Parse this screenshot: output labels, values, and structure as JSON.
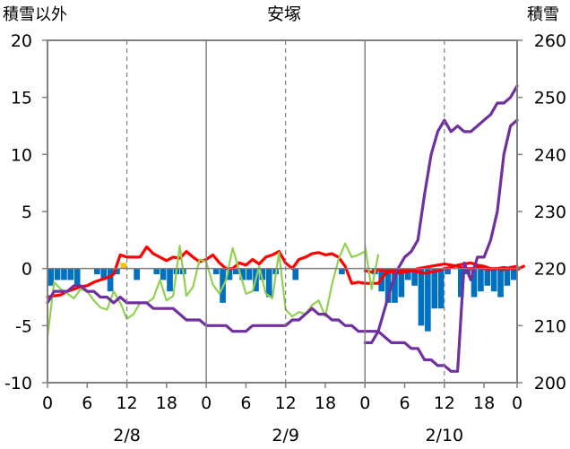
{
  "chart_data": {
    "type": "bar+line",
    "title": "安塚",
    "ylabel_left": "積雪以外",
    "ylabel_right": "積雪",
    "ylim_left": [
      -10,
      20
    ],
    "ylim_right": [
      200,
      260
    ],
    "yticks_left": [
      -10,
      -5,
      0,
      5,
      10,
      15,
      20
    ],
    "yticks_right": [
      200,
      210,
      220,
      230,
      240,
      250,
      260
    ],
    "xlim": [
      0,
      71
    ],
    "xticks": [
      0,
      6,
      12,
      18,
      24,
      30,
      36,
      42,
      48,
      54,
      60,
      66,
      72
    ],
    "xtick_labels": [
      "0",
      "6",
      "12",
      "18",
      "0",
      "6",
      "12",
      "18",
      "0",
      "6",
      "12",
      "18",
      "0"
    ],
    "date_labels": [
      {
        "hour": 12,
        "label": "2/8"
      },
      {
        "hour": 36,
        "label": "2/9"
      },
      {
        "hour": 60,
        "label": "2/10"
      }
    ],
    "day_separators": [
      24,
      48
    ],
    "dashed_lines": [
      12,
      36,
      60
    ],
    "grid": false,
    "colors": {
      "snow_depth_change": "#0070c0",
      "precipitation": "#ffc000",
      "temperature": "#ff0000",
      "wind": "#92d050",
      "snow_depth": "#7030a0",
      "axes": "#808080"
    },
    "series": [
      {
        "key": "snow_depth_change",
        "type": "bar",
        "axis": "left",
        "x_offset": 0,
        "values": [
          -1.5,
          -1,
          -1,
          -1,
          -1.5,
          0,
          0,
          -0.5,
          -1,
          -2,
          -0.5,
          0,
          0,
          -1,
          0,
          0,
          -0.5,
          -1,
          -2,
          -0.5,
          -0.5,
          0,
          0,
          0,
          0,
          -0.5,
          -3,
          -1,
          -0.5,
          -1,
          -1,
          -2,
          -1,
          -2.5,
          -0.5,
          0,
          0,
          -1,
          0,
          0,
          0,
          0,
          0,
          0,
          -0.5,
          0,
          0,
          0,
          0,
          -0.5,
          -2,
          -3,
          -3,
          -2.5,
          -1,
          -1.5,
          -5,
          -5.5,
          -3.5,
          -3.5,
          -0.5,
          0,
          -2.5,
          -0.5,
          -2.5,
          -2,
          -1.5,
          -2,
          -2.5,
          -1.5,
          -1
        ]
      },
      {
        "key": "precipitation",
        "type": "bar",
        "axis": "left",
        "x_offset": 0,
        "values": [
          0,
          0,
          0,
          0,
          0,
          0,
          0,
          0,
          0,
          0,
          0,
          0.5,
          0,
          0,
          0,
          0,
          0,
          0,
          0,
          0,
          0,
          0,
          0,
          0,
          0,
          0,
          0,
          0,
          0,
          0,
          0,
          0,
          0,
          0,
          0,
          0,
          0,
          0,
          0,
          0,
          0,
          0,
          0,
          0,
          0,
          0,
          0,
          0,
          0,
          0,
          0,
          0,
          0,
          0,
          0,
          0,
          0,
          0,
          0,
          0,
          0,
          0,
          0,
          0,
          0,
          0,
          0,
          0,
          0,
          0,
          0
        ]
      },
      {
        "key": "temperature",
        "type": "line",
        "axis": "left",
        "x_offset": 0,
        "values": [
          -2.5,
          -2.4,
          -2.3,
          -2.0,
          -1.8,
          -1.6,
          -1.5,
          -1.2,
          -1.0,
          -0.8,
          -0.5,
          1.2,
          1.0,
          1.0,
          1.0,
          1.9,
          1.3,
          1.0,
          0.7,
          1.0,
          0.9,
          1.5,
          1.0,
          0.6,
          0.8,
          1.2,
          0.5,
          0.0,
          0.0,
          0.5,
          0.3,
          0.8,
          0.4,
          1.0,
          1.2,
          1.5,
          0.5,
          0.0,
          0.8,
          1.0,
          1.3,
          1.4,
          1.2,
          1.3,
          1.0,
          0.2,
          -1.3,
          -1.2,
          -1.3,
          -1.3,
          -1.3,
          -0.5,
          -0.1,
          -0.2,
          -0.1,
          -0.2,
          -0.3,
          -0.4,
          -0.3,
          -0.2,
          0.0,
          0.1,
          0.3,
          0.4,
          0.5,
          0.3,
          0.2,
          0.0,
          0.0,
          0.1,
          0.0,
          -0.1,
          0.2
        ]
      },
      {
        "key": "temperature_seg2",
        "type": "line",
        "axis": "left",
        "x_offset": 48,
        "values": [
          -0.2,
          -0.3,
          -0.1,
          -0.2,
          -0.3,
          -0.4,
          -0.3,
          -0.2,
          0.0,
          0.1,
          0.2,
          0.3,
          0.4,
          0.3,
          0.2,
          0.0,
          0.0,
          0.1,
          0.0,
          -0.1,
          0.0,
          -0.1,
          0.1,
          0.2
        ]
      },
      {
        "key": "wind",
        "type": "line",
        "axis": "left",
        "x_offset": 0,
        "values": [
          -6,
          -1.2,
          -1.8,
          -2.2,
          -2.6,
          -1.8,
          -2.0,
          -2.8,
          -3.4,
          -3.6,
          -2.0,
          -3.0,
          -4.4,
          -4.0,
          -3.0,
          -3.0,
          -2.6,
          -1.0,
          -2.8,
          -2.4,
          2.0,
          -2.4,
          -1.6,
          0.8,
          0.6,
          -1.4,
          -2.2,
          -1.0,
          1.8,
          -0.2,
          -2.2,
          -2.0,
          0.2,
          -2.2,
          -2.6,
          1.4,
          -3.6,
          -4.2,
          -3.8,
          -4.0,
          -3.2,
          -2.8,
          -4.2,
          -1.4,
          0.8,
          2.2,
          1.0,
          1.2,
          1.5
        ]
      },
      {
        "key": "wind_seg2",
        "type": "line",
        "axis": "left",
        "x_offset": 48,
        "values": [
          2.0,
          -1.8,
          1.2
        ]
      },
      {
        "key": "snow_depth",
        "type": "line",
        "axis": "right",
        "x_offset": 0,
        "values": [
          214,
          216,
          216,
          216,
          217,
          217,
          216,
          216,
          215,
          215,
          214,
          215,
          214,
          214,
          214,
          214,
          213,
          213,
          213,
          213,
          212,
          211,
          211,
          211,
          210,
          210,
          210,
          210,
          209,
          209,
          209,
          210,
          210,
          210,
          210,
          210,
          210,
          211,
          211,
          212,
          213,
          212,
          212,
          211,
          211,
          210,
          210,
          209,
          209,
          209,
          209,
          208,
          207,
          207,
          207,
          206,
          206,
          204,
          204,
          203,
          203,
          202,
          202,
          221,
          218,
          222,
          222,
          225,
          230,
          240,
          245,
          246
        ]
      },
      {
        "key": "snow_depth_seg2",
        "type": "line",
        "axis": "right",
        "x_offset": 48,
        "values": [
          207,
          207,
          209,
          213,
          217,
          220,
          222,
          223,
          225,
          233,
          240,
          244,
          246,
          244,
          245,
          244,
          244,
          245,
          246,
          247,
          249,
          249,
          250,
          252
        ]
      }
    ]
  }
}
